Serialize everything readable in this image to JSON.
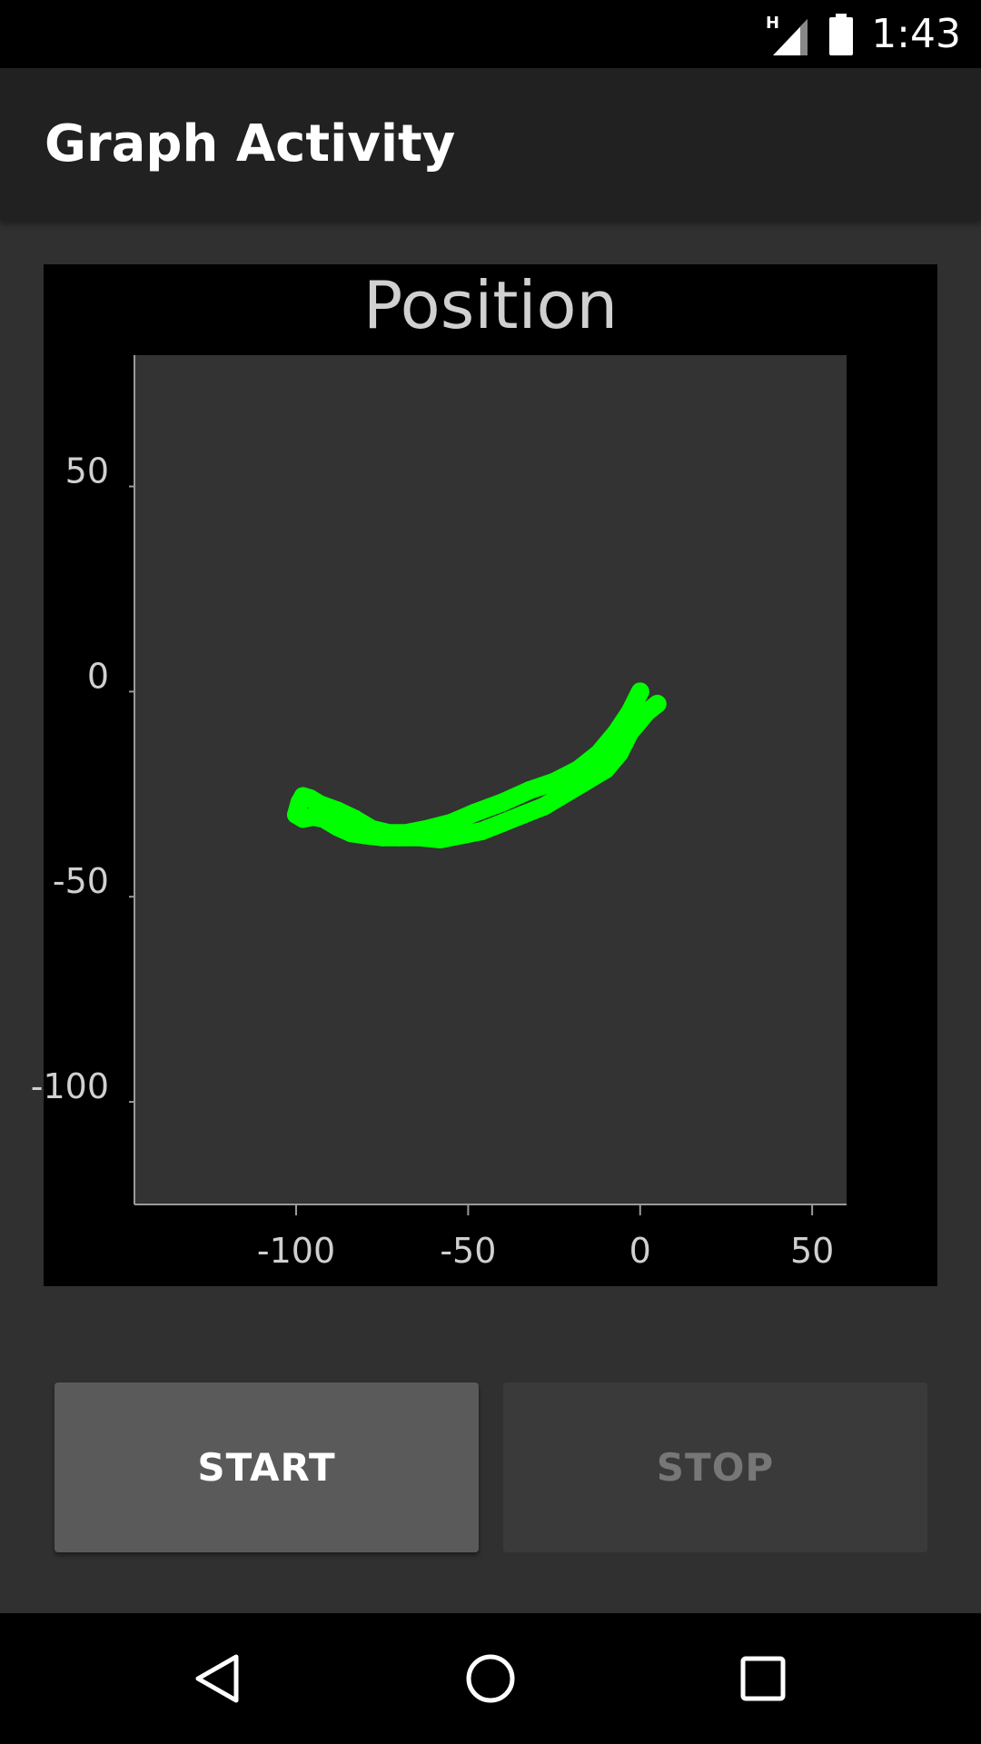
{
  "status_bar": {
    "time": "1:43",
    "network_label": "H",
    "icons": [
      "signal-icon",
      "battery-icon"
    ]
  },
  "app_bar": {
    "title": "Graph Activity"
  },
  "graph": {
    "colors": {
      "background": "#000000",
      "plot_area": "#333333",
      "trace": "#00ff00",
      "text": "#d0d0d0"
    }
  },
  "chart_data": {
    "type": "scatter",
    "title": "Position",
    "xlabel": "",
    "ylabel": "",
    "xlim": [
      -147,
      60
    ],
    "ylim": [
      -125,
      82
    ],
    "x_ticks": [
      -100,
      -50,
      0,
      50
    ],
    "y_ticks": [
      50,
      0,
      -50,
      -100
    ],
    "grid": false,
    "series": [
      {
        "color": "#00ff00",
        "x": [
          0,
          -3,
          -7,
          -12,
          -18,
          -25,
          -32,
          -40,
          -48,
          -55,
          -62,
          -68,
          -73,
          -78,
          -83,
          -88,
          -93,
          -96,
          -98,
          -99,
          -100,
          -98,
          -95,
          -92,
          -88,
          -84,
          -80,
          -75,
          -70,
          -64,
          -58,
          -52,
          -46,
          -40,
          -34,
          -28,
          -22,
          -16,
          -10,
          -6,
          -3,
          0,
          2,
          5
        ],
        "y": [
          0,
          -5,
          -10,
          -15,
          -19,
          -22,
          -24,
          -27,
          -29.5,
          -32,
          -33.5,
          -34.5,
          -34.5,
          -33.5,
          -31,
          -29,
          -27.5,
          -26,
          -25.5,
          -27,
          -30,
          -31,
          -30.5,
          -31,
          -33,
          -34.5,
          -35,
          -35.5,
          -35.5,
          -35.5,
          -36,
          -35,
          -34,
          -32,
          -30,
          -28,
          -25,
          -22,
          -19,
          -15,
          -10,
          -7,
          -5,
          -3
        ]
      }
    ]
  },
  "buttons": {
    "start_label": "START",
    "stop_label": "STOP"
  },
  "nav_bar": {
    "icons": [
      "back-icon",
      "home-icon",
      "recents-icon"
    ]
  }
}
